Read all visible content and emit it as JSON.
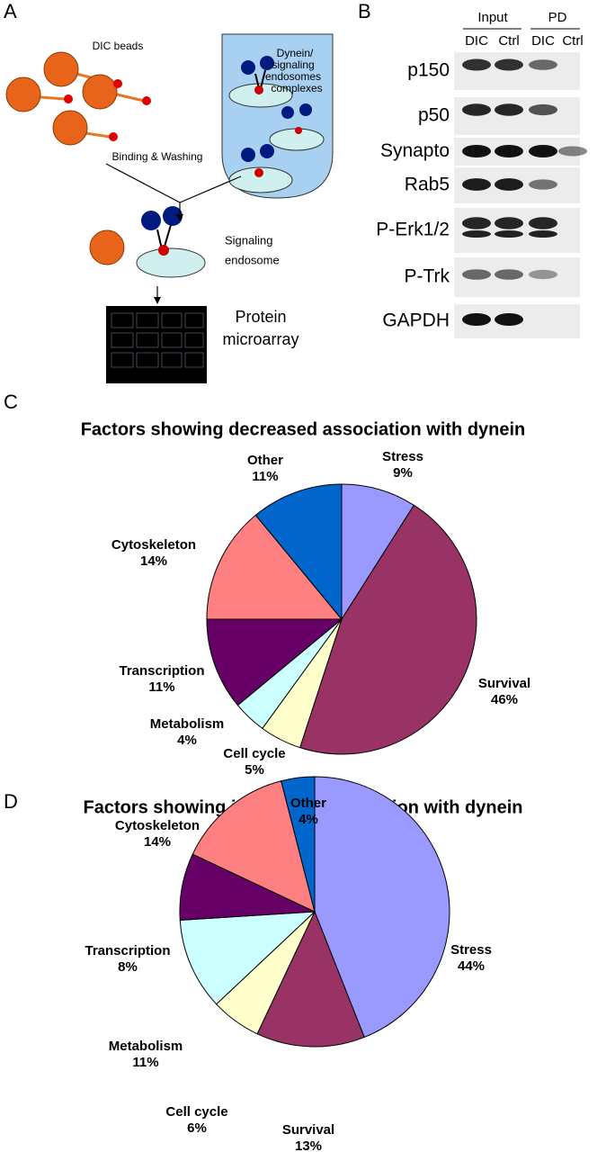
{
  "panels": [
    "A",
    "B",
    "C",
    "D"
  ],
  "diagram": {
    "beads_label": "DIC beads",
    "complex_label": [
      "Dynein/",
      "signaling",
      "endosomes",
      "complexes"
    ],
    "step_label": "Binding & Washing",
    "endosome_label": [
      "Signaling",
      "endosome"
    ],
    "array_label": [
      "Protein",
      "microarray"
    ]
  },
  "blot": {
    "groups": [
      "Input",
      "PD"
    ],
    "lanes": [
      "DIC",
      "Ctrl",
      "DIC",
      "Ctrl"
    ],
    "rows": [
      "p150",
      "p50",
      "Synapto",
      "Rab5",
      "P-Erk1/2",
      "P-Trk",
      "GAPDH"
    ]
  },
  "chart_data": [
    {
      "type": "pie",
      "title": "Factors showing decreased association with dynein",
      "categories": [
        "Stress",
        "Survival",
        "Cell cycle",
        "Metabolism",
        "Transcription",
        "Cytoskeleton",
        "Other"
      ],
      "values": [
        9,
        46,
        5,
        4,
        11,
        14,
        11
      ],
      "value_labels": [
        "9%",
        "46%",
        "5%",
        "4%",
        "11%",
        "14%",
        "11%"
      ],
      "colors": [
        "#9999ff",
        "#993366",
        "#ffffcc",
        "#ccffff",
        "#660066",
        "#ff8080",
        "#0066cc"
      ]
    },
    {
      "type": "pie",
      "title": "Factors showing increased association with dynein",
      "categories": [
        "Stress",
        "Survival",
        "Cell cycle",
        "Metabolism",
        "Transcription",
        "Cytoskeleton",
        "Other"
      ],
      "values": [
        44,
        13,
        6,
        11,
        8,
        14,
        4
      ],
      "value_labels": [
        "44%",
        "13%",
        "6%",
        "11%",
        "8%",
        "14%",
        "4%"
      ],
      "colors": [
        "#9999ff",
        "#993366",
        "#ffffcc",
        "#ccffff",
        "#660066",
        "#ff8080",
        "#0066cc"
      ]
    }
  ]
}
